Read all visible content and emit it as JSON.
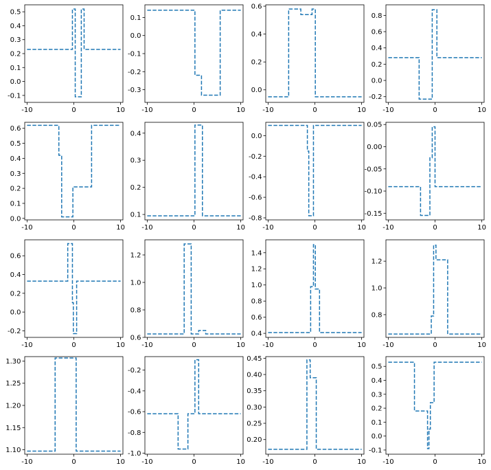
{
  "figure": {
    "colors": {
      "line": "#1f77b4",
      "background": "#ffffff",
      "axes": "#000000"
    },
    "line_style": "dashed",
    "grid": false,
    "layout": "4 rows x 4 columns"
  },
  "chart_data": [
    {
      "type": "line",
      "xlim": [
        -10.5,
        10.5
      ],
      "ylim": [
        -0.15,
        0.55
      ],
      "xticks": [
        "-10",
        "0",
        "10"
      ],
      "yticks": [
        "-0.1",
        "0.0",
        "0.1",
        "0.2",
        "0.3",
        "0.4",
        "0.5"
      ],
      "ytick_values": [
        -0.1,
        0.0,
        0.1,
        0.2,
        0.3,
        0.4,
        0.5
      ],
      "x": [
        -10,
        -0.3,
        -0.3,
        0.3,
        0.3,
        1.6,
        1.6,
        2.2,
        2.2,
        10
      ],
      "y": [
        0.23,
        0.23,
        0.52,
        0.52,
        -0.11,
        -0.11,
        0.52,
        0.52,
        0.23,
        0.23
      ]
    },
    {
      "type": "line",
      "xlim": [
        -10.5,
        10.5
      ],
      "ylim": [
        -0.37,
        0.17
      ],
      "xticks": [
        "-10",
        "0",
        "10"
      ],
      "yticks": [
        "-0.3",
        "-0.2",
        "-0.1",
        "0.0",
        "0.1"
      ],
      "ytick_values": [
        -0.3,
        -0.2,
        -0.1,
        0.0,
        0.1
      ],
      "x": [
        -10,
        0.2,
        0.2,
        1.6,
        1.6,
        5.6,
        5.6,
        10
      ],
      "y": [
        0.14,
        0.14,
        -0.22,
        -0.22,
        -0.33,
        -0.33,
        0.14,
        0.14
      ]
    },
    {
      "type": "line",
      "xlim": [
        -10.5,
        10.5
      ],
      "ylim": [
        -0.09,
        0.61
      ],
      "xticks": [
        "-10",
        "0",
        "10"
      ],
      "yticks": [
        "0.0",
        "0.2",
        "0.4",
        "0.6"
      ],
      "ytick_values": [
        0.0,
        0.2,
        0.4,
        0.6
      ],
      "x": [
        -10,
        -5.6,
        -5.6,
        -3,
        -3,
        -0.6,
        -0.6,
        0.1,
        0.1,
        10
      ],
      "y": [
        -0.05,
        -0.05,
        0.58,
        0.58,
        0.54,
        0.54,
        0.58,
        0.58,
        -0.05,
        -0.05
      ]
    },
    {
      "type": "line",
      "xlim": [
        -10.5,
        10.5
      ],
      "ylim": [
        -0.27,
        0.93
      ],
      "xticks": [
        "-10",
        "0",
        "10"
      ],
      "yticks": [
        "-0.2",
        "0.0",
        "0.2",
        "0.4",
        "0.6",
        "0.8"
      ],
      "ytick_values": [
        -0.2,
        0.0,
        0.2,
        0.4,
        0.6,
        0.8
      ],
      "x": [
        -10,
        -3.4,
        -3.4,
        -0.6,
        -0.6,
        0.4,
        0.4,
        10
      ],
      "y": [
        0.28,
        0.28,
        -0.23,
        -0.23,
        0.87,
        0.87,
        0.28,
        0.28
      ]
    },
    {
      "type": "line",
      "xlim": [
        -10.5,
        10.5
      ],
      "ylim": [
        -0.01,
        0.64
      ],
      "xticks": [
        "-10",
        "0",
        "10"
      ],
      "yticks": [
        "0.0",
        "0.1",
        "0.2",
        "0.3",
        "0.4",
        "0.5",
        "0.6"
      ],
      "ytick_values": [
        0.0,
        0.1,
        0.2,
        0.3,
        0.4,
        0.5,
        0.6
      ],
      "x": [
        -10,
        -3.2,
        -3.2,
        -2.6,
        -2.6,
        -2,
        -2,
        -0.2,
        -0.2,
        3.8,
        3.8,
        10
      ],
      "y": [
        0.62,
        0.62,
        0.42,
        0.42,
        0.01,
        0.01,
        0.01,
        0.01,
        0.21,
        0.21,
        0.62,
        0.62
      ]
    },
    {
      "type": "line",
      "xlim": [
        -10.5,
        10.5
      ],
      "ylim": [
        0.08,
        0.44
      ],
      "xticks": [
        "-10",
        "0",
        "10"
      ],
      "yticks": [
        "0.1",
        "0.2",
        "0.3",
        "0.4"
      ],
      "ytick_values": [
        0.1,
        0.2,
        0.3,
        0.4
      ],
      "x": [
        -10,
        0.2,
        0.2,
        1.8,
        1.8,
        10
      ],
      "y": [
        0.095,
        0.095,
        0.43,
        0.43,
        0.095,
        0.095
      ]
    },
    {
      "type": "line",
      "xlim": [
        -10.5,
        10.5
      ],
      "ylim": [
        -0.82,
        0.13
      ],
      "xticks": [
        "-10",
        "0",
        "10"
      ],
      "yticks": [
        "0.0",
        "-0.2",
        "-0.4",
        "-0.6",
        "-0.8"
      ],
      "ytick_values": [
        0.0,
        -0.2,
        -0.4,
        -0.6,
        -0.8
      ],
      "x": [
        -10,
        -1.6,
        -1.6,
        -1.3,
        -1.3,
        -0.3,
        -0.3,
        10
      ],
      "y": [
        0.1,
        0.1,
        -0.15,
        -0.15,
        -0.78,
        -0.78,
        0.1,
        0.1
      ]
    },
    {
      "type": "line",
      "xlim": [
        -10.5,
        10.5
      ],
      "ylim": [
        -0.165,
        0.055
      ],
      "xticks": [
        "-10",
        "0",
        "10"
      ],
      "yticks": [
        "0.05",
        "0.00",
        "-0.05",
        "-0.10",
        "-0.15"
      ],
      "ytick_values": [
        0.05,
        0.0,
        -0.05,
        -0.1,
        -0.15
      ],
      "x": [
        -10,
        -3.1,
        -3.1,
        -1.1,
        -1.1,
        -0.6,
        -0.6,
        0,
        0,
        10
      ],
      "y": [
        -0.09,
        -0.09,
        -0.155,
        -0.155,
        -0.025,
        -0.025,
        0.045,
        0.045,
        -0.09,
        -0.09
      ]
    },
    {
      "type": "line",
      "xlim": [
        -10.5,
        10.5
      ],
      "ylim": [
        -0.27,
        0.77
      ],
      "xticks": [
        "-10",
        "0",
        "10"
      ],
      "yticks": [
        "-0.2",
        "0.0",
        "0.2",
        "0.4",
        "0.6"
      ],
      "ytick_values": [
        -0.2,
        0.0,
        0.2,
        0.4,
        0.6
      ],
      "x": [
        -10,
        -1.3,
        -1.3,
        -0.3,
        -0.3,
        -0.1,
        -0.1,
        0.6,
        0.6,
        10
      ],
      "y": [
        0.33,
        0.33,
        0.73,
        0.73,
        0.1,
        0.1,
        -0.23,
        -0.23,
        0.33,
        0.33
      ]
    },
    {
      "type": "line",
      "xlim": [
        -10.5,
        10.5
      ],
      "ylim": [
        0.6,
        1.31
      ],
      "xticks": [
        "-10",
        "0",
        "10"
      ],
      "yticks": [
        "0.6",
        "0.8",
        "1.0",
        "1.2"
      ],
      "ytick_values": [
        0.6,
        0.8,
        1.0,
        1.2
      ],
      "x": [
        -10,
        -2.1,
        -2.1,
        -0.6,
        -0.6,
        1,
        1,
        2.5,
        2.5,
        10
      ],
      "y": [
        0.625,
        0.625,
        1.28,
        1.28,
        0.625,
        0.625,
        0.65,
        0.65,
        0.625,
        0.625
      ]
    },
    {
      "type": "line",
      "xlim": [
        -10.5,
        10.5
      ],
      "ylim": [
        0.35,
        1.56
      ],
      "xticks": [
        "-10",
        "0",
        "10"
      ],
      "yticks": [
        "0.4",
        "0.6",
        "0.8",
        "1.0",
        "1.2",
        "1.4"
      ],
      "ytick_values": [
        0.4,
        0.6,
        0.8,
        1.0,
        1.2,
        1.4
      ],
      "x": [
        -10,
        -0.9,
        -0.9,
        -0.3,
        -0.3,
        0.1,
        0.1,
        1,
        1,
        10
      ],
      "y": [
        0.41,
        0.41,
        0.98,
        0.98,
        1.5,
        1.5,
        0.95,
        0.95,
        0.41,
        0.41
      ]
    },
    {
      "type": "line",
      "xlim": [
        -10.5,
        10.5
      ],
      "ylim": [
        0.63,
        1.36
      ],
      "xticks": [
        "-10",
        "0",
        "10"
      ],
      "yticks": [
        "0.8",
        "1.0",
        "1.2"
      ],
      "ytick_values": [
        0.8,
        1.0,
        1.2
      ],
      "x": [
        -10,
        -0.8,
        -0.8,
        -0.3,
        -0.3,
        0.2,
        0.2,
        2.7,
        2.7,
        10
      ],
      "y": [
        0.655,
        0.655,
        0.79,
        0.79,
        1.32,
        1.32,
        1.21,
        1.21,
        0.655,
        0.655
      ]
    },
    {
      "type": "line",
      "xlim": [
        -10.5,
        10.5
      ],
      "ylim": [
        1.09,
        1.31
      ],
      "xticks": [
        "-10",
        "0",
        "10"
      ],
      "yticks": [
        "1.10",
        "1.15",
        "1.20",
        "1.25",
        "1.30"
      ],
      "ytick_values": [
        1.1,
        1.15,
        1.2,
        1.25,
        1.3
      ],
      "x": [
        -10,
        -4,
        -4,
        0.5,
        0.5,
        10
      ],
      "y": [
        1.097,
        1.097,
        1.307,
        1.307,
        1.097,
        1.097
      ]
    },
    {
      "type": "line",
      "xlim": [
        -10.5,
        10.5
      ],
      "ylim": [
        -1.01,
        -0.07
      ],
      "xticks": [
        "-10",
        "0",
        "10"
      ],
      "yticks": [
        "-0.2",
        "-0.4",
        "-0.6",
        "-0.8",
        "-1.0"
      ],
      "ytick_values": [
        -0.2,
        -0.4,
        -0.6,
        -0.8,
        -1.0
      ],
      "x": [
        -10,
        -3.4,
        -3.4,
        -1.3,
        -1.3,
        -0.8,
        -0.8,
        0.2,
        0.2,
        1,
        1,
        10
      ],
      "y": [
        -0.62,
        -0.62,
        -0.96,
        -0.96,
        -0.62,
        -0.62,
        -0.62,
        -0.62,
        -0.1,
        -0.1,
        -0.62,
        -0.62
      ]
    },
    {
      "type": "line",
      "xlim": [
        -10.5,
        10.5
      ],
      "ylim": [
        0.155,
        0.455
      ],
      "xticks": [
        "-10",
        "0",
        "10"
      ],
      "yticks": [
        "0.20",
        "0.25",
        "0.30",
        "0.35",
        "0.40",
        "0.45"
      ],
      "ytick_values": [
        0.2,
        0.25,
        0.3,
        0.35,
        0.4,
        0.45
      ],
      "x": [
        -10,
        -1.7,
        -1.7,
        -1,
        -1,
        0.3,
        0.3,
        10
      ],
      "y": [
        0.17,
        0.17,
        0.445,
        0.445,
        0.39,
        0.39,
        0.17,
        0.17
      ]
    },
    {
      "type": "line",
      "xlim": [
        -10.5,
        10.5
      ],
      "ylim": [
        -0.13,
        0.57
      ],
      "xticks": [
        "-10",
        "0",
        "10"
      ],
      "yticks": [
        "-0.1",
        "0.0",
        "0.1",
        "0.2",
        "0.3",
        "0.4",
        "0.5"
      ],
      "ytick_values": [
        -0.1,
        0.0,
        0.1,
        0.2,
        0.3,
        0.4,
        0.5
      ],
      "x": [
        -10,
        -4.4,
        -4.4,
        -1.6,
        -1.6,
        -1.3,
        -1.3,
        -1,
        -1,
        -0.2,
        -0.2,
        10
      ],
      "y": [
        0.53,
        0.53,
        0.18,
        0.18,
        -0.09,
        -0.09,
        0.05,
        0.05,
        0.24,
        0.24,
        0.53,
        0.53
      ]
    }
  ]
}
